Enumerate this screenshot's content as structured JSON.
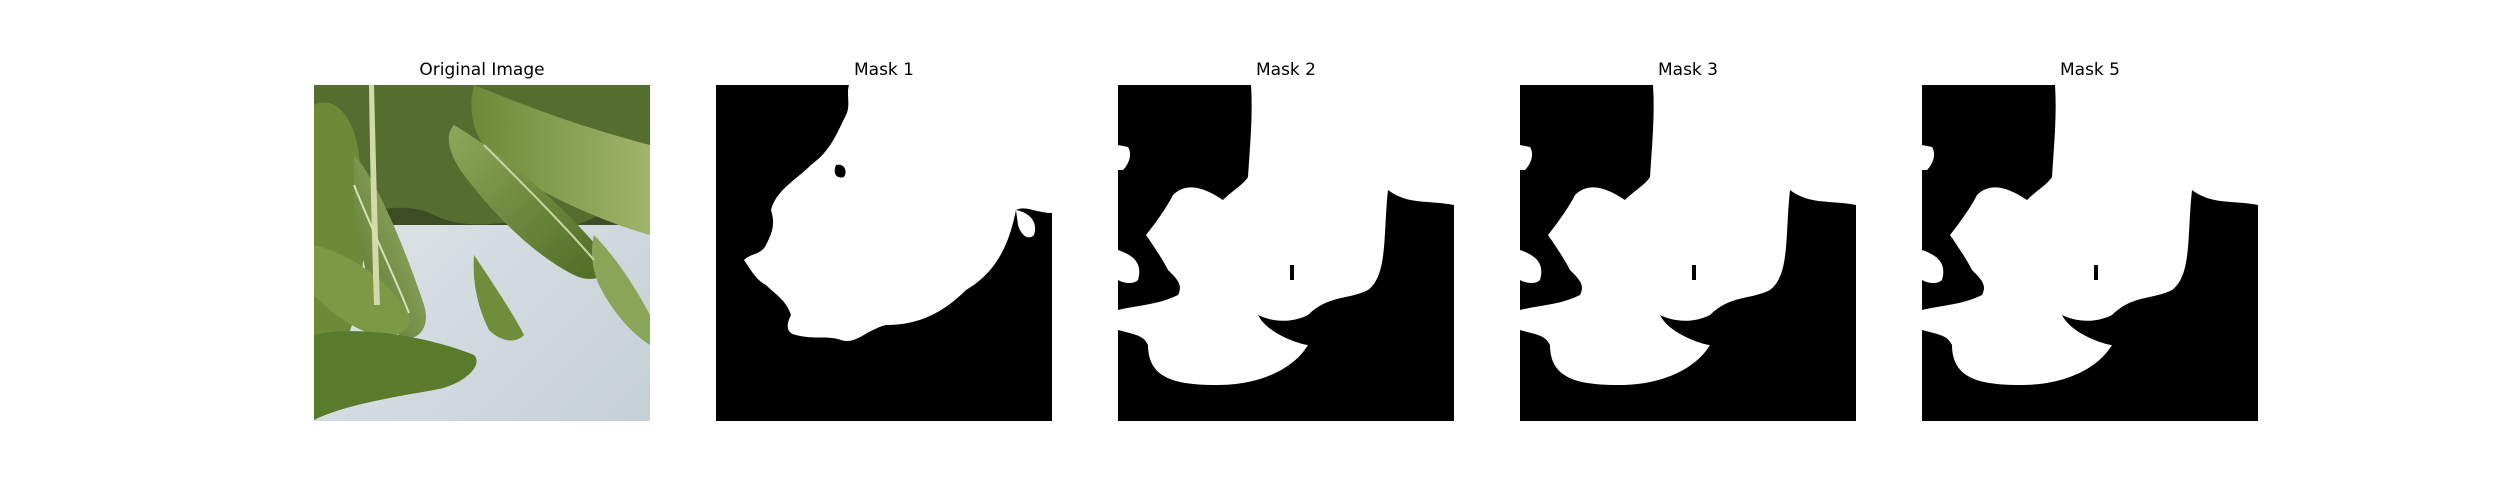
{
  "figure": {
    "panels": [
      {
        "title": "Original Image",
        "kind": "photo"
      },
      {
        "title": "Mask 1",
        "kind": "mask",
        "variant": "mask1"
      },
      {
        "title": "Mask 2",
        "kind": "mask",
        "variant": "mask2"
      },
      {
        "title": "Mask 3",
        "kind": "mask",
        "variant": "mask2"
      },
      {
        "title": "Mask 5",
        "kind": "mask",
        "variant": "mask2"
      }
    ],
    "colors": {
      "background": "#ffffff",
      "mask_background": "#000000",
      "mask_foreground": "#ffffff",
      "leaf_dark": "#4f6a26",
      "leaf_mid": "#7f9a4a",
      "leaf_light": "#a7bd77",
      "backdrop": "#cfd9de"
    }
  }
}
